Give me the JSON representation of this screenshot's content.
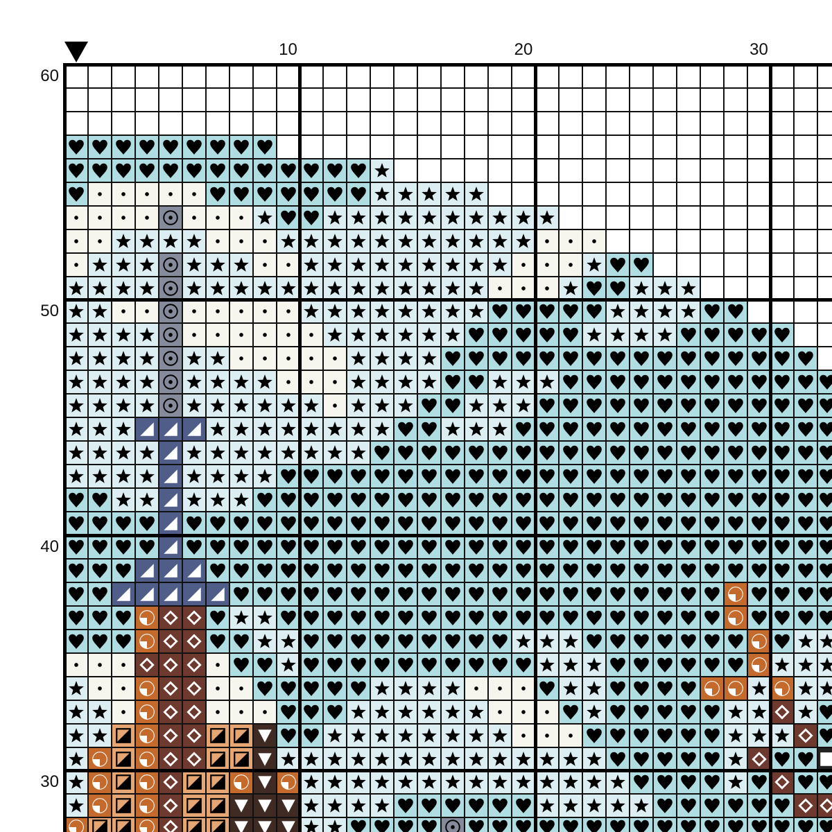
{
  "pattern": {
    "column_labels": [
      {
        "text": "10",
        "column": 10
      },
      {
        "text": "20",
        "column": 20
      },
      {
        "text": "30",
        "column": 30
      }
    ],
    "row_labels": [
      {
        "text": "60",
        "row": 60
      },
      {
        "text": "50",
        "row": 50
      },
      {
        "text": "40",
        "row": 40
      },
      {
        "text": "30",
        "row": 30
      }
    ],
    "start_marker": "triangle-down-icon",
    "first_row": 60,
    "rows": [
      ".................................",
      ".................................",
      ".................................",
      "HHHHHHHHH........................",
      "HHHHHHHHHHHHHS...................",
      "HDDDDDHHHHHHHSSSSS...............",
      "DDDDODDDSHHSSSSSSSSSS............",
      "DDSSSSDDDSSSSSSSSSSSDDD..........",
      "DSSSOSSSDDSSSSSSSSSDDDSHH........",
      "SSSSOSSSSSSSSSSSSSDDDSHHSSS......",
      "SSDDODDDDDSSSSSSSSHHHHHSSSSHH....",
      "SSSSODDDDDDSSSSSSHHHHHSSSSHHHHH..",
      "SSSSOSSDDDDDSSSSHHHHHHHHHHHHHHHH.",
      "SSSSOSSSSDDDSSSSHHSSSHHHHHHHHHHHH",
      "SSSSOSSSSSSDSSSHHSSSHHHHHHHHHHHHH",
      "SSSTTTSSSSSSSSHHSSSHHHHHHHHHHHHHH",
      "SSSSTSSSSSSSSHHHHHHHHHHHHHHHHHHHH",
      "SSSSTSSSSHHHHHHHHHHHHHHHHHHHHHHHH",
      "HHSSTSSSHHHHHHHHHHHHHHHHHHHHHHHHH",
      "HHHHTHHHHHHHHHHHHHHHHHHHHHHHHHHHH",
      "HHHHTHHHHHHHHHHHHHHHHHHHHHHHHHHHH",
      "HHHTTTHHHHHHHHHHHHHHHHHHHHHHHHHHH",
      "HHTTTTTHHHHHHHHHHHHHHHHHHHHHQHHHH",
      "HHHQXXHSSHHHHHHHHHHHHHHHHHHHQHHHH",
      "HHHQXXHHSSHHHHHHHHHSSSHHHHHHHQHSS",
      "DDDXXXDHHSHHHHHHHHHHSSSHHHHHHQSSS",
      "SDDQXXDDHHHHHSSSSDDDHSSHHHHQQSQSS",
      "SSDQXXDDDHHHSSSSSSDDDHSHHHHHSSXSH",
      "SSBQXXBBVHHSSSSSSSSDDDHHHHHHSSSXH",
      "SQBQXXBBVSSSSSSSSSSSSSSHHHHHSXHHE",
      "SQBQXBBQVQSSSSSSSSSSSSSSHHHHSHXHH",
      "SQBQXBBVVVSSSSHHHHHHSSSSSHHHHHHXX",
      "QBBQXBBVVVSSHHHHOHHHHHHHHHHHHHHHH"
    ],
    "symbols": {
      ".": {
        "name": "empty",
        "bg": "#ffffff"
      },
      "H": {
        "name": "heart",
        "bg": "#afdde1",
        "fg": "#000000"
      },
      "S": {
        "name": "star",
        "bg": "#ddeef3",
        "fg": "#000000"
      },
      "D": {
        "name": "dot",
        "bg": "#f7f6ee",
        "fg": "#000000"
      },
      "O": {
        "name": "circled-dot",
        "bg": "#858b9b",
        "fg": "#000000"
      },
      "T": {
        "name": "half-triangle",
        "bg": "#4f5d88",
        "fg": "#ffffff"
      },
      "Q": {
        "name": "quarter-circle",
        "bg": "#c46a2c",
        "fg": "#ffffff"
      },
      "X": {
        "name": "diamond",
        "bg": "#6e3a2f",
        "fg": "#ffffff"
      },
      "B": {
        "name": "half-square",
        "bg": "#e6a673",
        "fg": "#000000"
      },
      "V": {
        "name": "down-triangle",
        "bg": "#3f2b23",
        "fg": "#ffffff"
      },
      "E": {
        "name": "white-square",
        "bg": "#222222",
        "fg": "#ffffff"
      }
    }
  }
}
